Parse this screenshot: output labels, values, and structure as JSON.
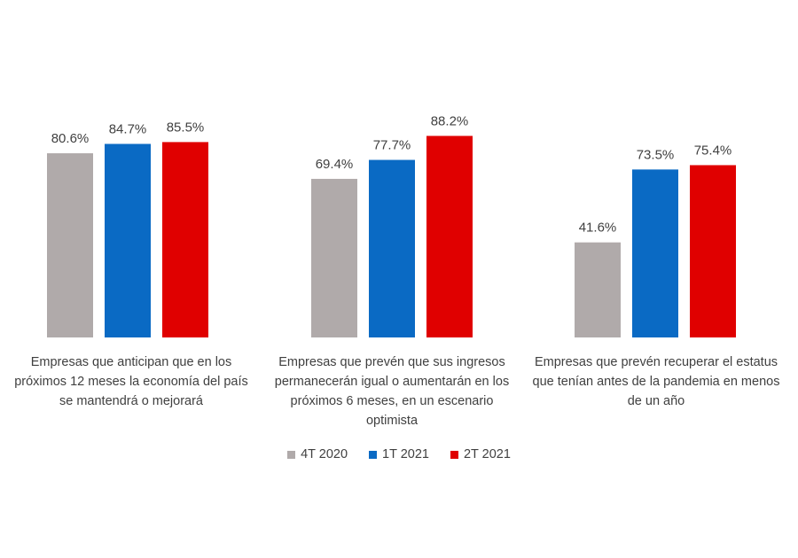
{
  "chart_data": {
    "type": "bar",
    "categories": [
      "Empresas que anticipan que en los próximos 12 meses la economía del país se mantendrá o mejorará",
      "Empresas que prevén que sus ingresos permanecerán igual o aumentarán en los próximos 6 meses, en un escenario optimista",
      "Empresas que prevén recuperar el estatus que tenían antes de la pandemia en menos de un año"
    ],
    "series": [
      {
        "name": "4T 2020",
        "color": "#b0aaaa",
        "values": [
          80.6,
          69.4,
          41.6
        ],
        "labels": [
          "80.6%",
          "69.4%",
          "41.6%"
        ]
      },
      {
        "name": "1T 2021",
        "color": "#0a6ac4",
        "values": [
          84.7,
          77.7,
          73.5
        ],
        "labels": [
          "84.7%",
          "77.7%",
          "73.5%"
        ]
      },
      {
        "name": "2T 2021",
        "color": "#e00000",
        "values": [
          85.5,
          88.2,
          75.4
        ],
        "labels": [
          "85.5%",
          "88.2%",
          "75.4%"
        ]
      }
    ],
    "ylim": [
      0,
      100
    ],
    "legend_position": "bottom",
    "grid": false
  }
}
